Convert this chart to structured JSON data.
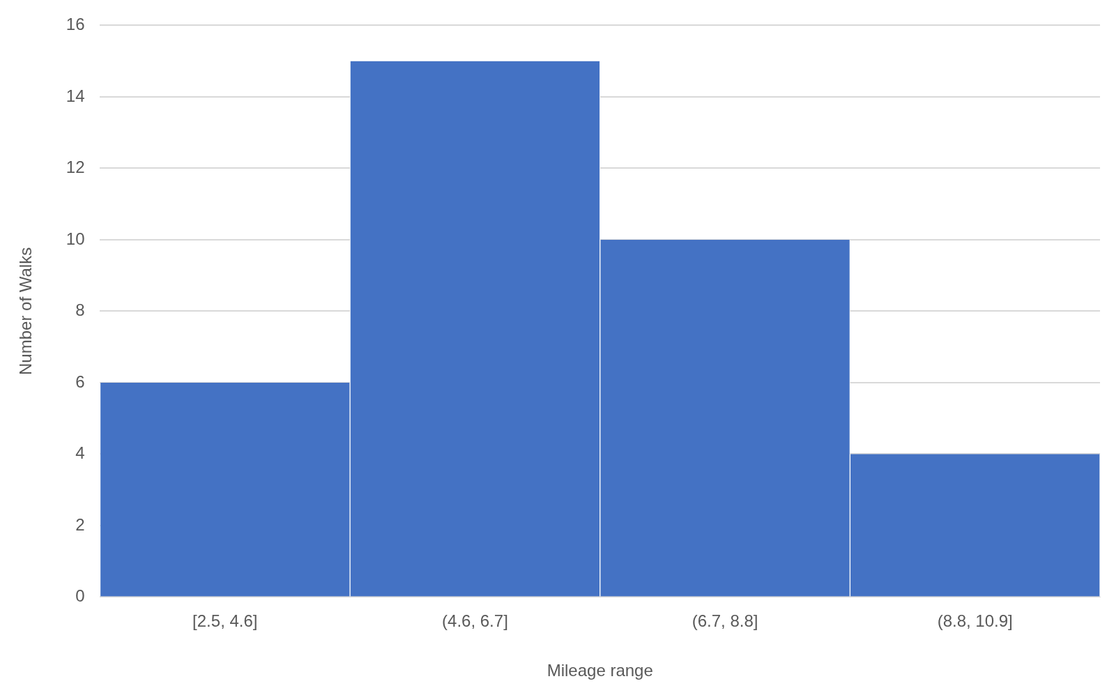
{
  "chart_data": {
    "type": "bar",
    "xlabel": "Mileage range",
    "ylabel": "Number of Walks",
    "categories": [
      "[2.5, 4.6]",
      "(4.6, 6.7]",
      "(6.7, 8.8]",
      "(8.8, 10.9]"
    ],
    "values": [
      6,
      15,
      10,
      4
    ],
    "color": "#4472c4",
    "ylim": [
      0,
      16
    ],
    "yticks": [
      0,
      2,
      4,
      6,
      8,
      10,
      12,
      14,
      16
    ],
    "grid": "y",
    "legend": false
  }
}
